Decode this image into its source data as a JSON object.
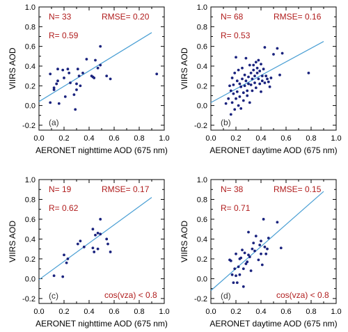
{
  "colors": {
    "points": "#1a237e",
    "fit_line": "#4a9fd4",
    "stats_text": "#b01c1c",
    "frame": "#000000"
  },
  "chart_data": [
    {
      "type": "scatter",
      "panel_label": "(a)",
      "xlabel": "AERONET nighttime AOD (675 nm)",
      "ylabel": "VIIRS AOD",
      "xlim": [
        0,
        1.0
      ],
      "ylim": [
        -0.25,
        1.0
      ],
      "xticks": [
        "0.0",
        "0.2",
        "0.4",
        "0.6",
        "0.8",
        "1.0"
      ],
      "yticks": [
        "-0.2",
        "0.0",
        "0.2",
        "0.4",
        "0.6",
        "0.8",
        "1.0"
      ],
      "stats": {
        "n": "N= 33",
        "rmse": "RMSE= 0.20",
        "r": "R= 0.59",
        "condition": ""
      },
      "fit_line": [
        [
          0,
          0.04
        ],
        [
          0.9,
          0.74
        ]
      ],
      "points": [
        [
          0.09,
          0.32
        ],
        [
          0.09,
          0.03
        ],
        [
          0.12,
          0.18
        ],
        [
          0.12,
          0.16
        ],
        [
          0.14,
          0.22
        ],
        [
          0.15,
          0.37
        ],
        [
          0.15,
          0.25
        ],
        [
          0.16,
          0.02
        ],
        [
          0.19,
          0.36
        ],
        [
          0.2,
          0.28
        ],
        [
          0.21,
          0.09
        ],
        [
          0.23,
          0.37
        ],
        [
          0.24,
          0.33
        ],
        [
          0.25,
          0.23
        ],
        [
          0.28,
          0.11
        ],
        [
          0.29,
          -0.04
        ],
        [
          0.3,
          0.22
        ],
        [
          0.3,
          0.16
        ],
        [
          0.31,
          0.37
        ],
        [
          0.32,
          0.3
        ],
        [
          0.33,
          0.2
        ],
        [
          0.35,
          0.33
        ],
        [
          0.38,
          0.47
        ],
        [
          0.42,
          0.3
        ],
        [
          0.43,
          0.29
        ],
        [
          0.44,
          0.28
        ],
        [
          0.45,
          0.46
        ],
        [
          0.47,
          0.38
        ],
        [
          0.49,
          0.6
        ],
        [
          0.49,
          0.41
        ],
        [
          0.54,
          0.3
        ],
        [
          0.57,
          0.27
        ],
        [
          0.94,
          0.32
        ]
      ]
    },
    {
      "type": "scatter",
      "panel_label": "(b)",
      "xlabel": "AERONET daytime AOD (675 nm)",
      "ylabel": "VIIRS AOD",
      "xlim": [
        0,
        1.0
      ],
      "ylim": [
        -0.25,
        1.0
      ],
      "xticks": [
        "0.0",
        "0.2",
        "0.4",
        "0.6",
        "0.8",
        "1.0"
      ],
      "yticks": [
        "-0.2",
        "0.0",
        "0.2",
        "0.4",
        "0.6",
        "0.8",
        "1.0"
      ],
      "stats": {
        "n": "N= 68",
        "rmse": "RMSE= 0.16",
        "r": "R= 0.53",
        "condition": ""
      },
      "fit_line": [
        [
          0,
          0.03
        ],
        [
          0.9,
          0.65
        ]
      ],
      "points": [
        [
          0.12,
          0.02
        ],
        [
          0.14,
          0.07
        ],
        [
          0.15,
          0.2
        ],
        [
          0.16,
          0.15
        ],
        [
          0.16,
          -0.09
        ],
        [
          0.17,
          0.03
        ],
        [
          0.17,
          0.28
        ],
        [
          0.18,
          0.21
        ],
        [
          0.18,
          0.12
        ],
        [
          0.19,
          -0.04
        ],
        [
          0.19,
          0.33
        ],
        [
          0.2,
          0.07
        ],
        [
          0.2,
          0.49
        ],
        [
          0.21,
          0.25
        ],
        [
          0.21,
          0.14
        ],
        [
          0.22,
          0.0
        ],
        [
          0.22,
          0.36
        ],
        [
          0.23,
          0.22
        ],
        [
          0.23,
          0.09
        ],
        [
          0.24,
          0.19
        ],
        [
          0.24,
          -0.03
        ],
        [
          0.25,
          0.27
        ],
        [
          0.25,
          0.38
        ],
        [
          0.26,
          0.13
        ],
        [
          0.26,
          0.05
        ],
        [
          0.27,
          0.2
        ],
        [
          0.27,
          0.31
        ],
        [
          0.28,
          0.48
        ],
        [
          0.28,
          0.25
        ],
        [
          0.29,
          0.15
        ],
        [
          0.29,
          0.1
        ],
        [
          0.3,
          0.29
        ],
        [
          0.3,
          0.22
        ],
        [
          0.31,
          0.41
        ],
        [
          0.31,
          0.03
        ],
        [
          0.32,
          0.21
        ],
        [
          0.32,
          0.33
        ],
        [
          0.33,
          0.27
        ],
        [
          0.33,
          0.15
        ],
        [
          0.34,
          0.41
        ],
        [
          0.34,
          0.36
        ],
        [
          0.35,
          0.23
        ],
        [
          0.35,
          0.3
        ],
        [
          0.36,
          0.44
        ],
        [
          0.36,
          0.18
        ],
        [
          0.37,
          0.38
        ],
        [
          0.37,
          0.33
        ],
        [
          0.38,
          0.46
        ],
        [
          0.38,
          0.27
        ],
        [
          0.39,
          0.35
        ],
        [
          0.39,
          0.22
        ],
        [
          0.4,
          0.42
        ],
        [
          0.4,
          0.14
        ],
        [
          0.41,
          0.3
        ],
        [
          0.41,
          0.25
        ],
        [
          0.42,
          0.37
        ],
        [
          0.43,
          0.23
        ],
        [
          0.43,
          0.59
        ],
        [
          0.44,
          0.3
        ],
        [
          0.45,
          0.27
        ],
        [
          0.46,
          0.24
        ],
        [
          0.47,
          0.19
        ],
        [
          0.48,
          0.28
        ],
        [
          0.5,
          0.52
        ],
        [
          0.53,
          0.58
        ],
        [
          0.55,
          0.31
        ],
        [
          0.57,
          0.53
        ],
        [
          0.78,
          0.33
        ]
      ]
    },
    {
      "type": "scatter",
      "panel_label": "(c)",
      "xlabel": "AERONET nighttime AOD (675 nm)",
      "ylabel": "VIIRS AOD",
      "xlim": [
        0,
        1.0
      ],
      "ylim": [
        -0.25,
        1.0
      ],
      "xticks": [
        "0.0",
        "0.2",
        "0.4",
        "0.6",
        "0.8",
        "1.0"
      ],
      "yticks": [
        "-0.2",
        "0.0",
        "0.2",
        "0.4",
        "0.6",
        "0.8",
        "1.0"
      ],
      "stats": {
        "n": "N= 19",
        "rmse": "RMSE= 0.17",
        "r": "R= 0.62",
        "condition": "cos(vza) < 0.8"
      },
      "fit_line": [
        [
          0,
          -0.01
        ],
        [
          0.9,
          0.82
        ]
      ],
      "points": [
        [
          0.12,
          0.03
        ],
        [
          0.19,
          0.02
        ],
        [
          0.2,
          0.24
        ],
        [
          0.22,
          0.16
        ],
        [
          0.23,
          0.2
        ],
        [
          0.31,
          0.35
        ],
        [
          0.33,
          0.38
        ],
        [
          0.36,
          0.32
        ],
        [
          0.43,
          0.31
        ],
        [
          0.43,
          0.5
        ],
        [
          0.44,
          0.27
        ],
        [
          0.45,
          0.44
        ],
        [
          0.47,
          0.3
        ],
        [
          0.47,
          0.46
        ],
        [
          0.49,
          0.45
        ],
        [
          0.49,
          0.6
        ],
        [
          0.54,
          0.4
        ],
        [
          0.55,
          0.35
        ],
        [
          0.57,
          0.27
        ]
      ]
    },
    {
      "type": "scatter",
      "panel_label": "(d)",
      "xlabel": "AERONET daytime AOD (675 nm)",
      "ylabel": "VIIRS AOD",
      "xlim": [
        0,
        1.0
      ],
      "ylim": [
        -0.25,
        1.0
      ],
      "xticks": [
        "0.0",
        "0.2",
        "0.4",
        "0.6",
        "0.8",
        "1.0"
      ],
      "yticks": [
        "-0.2",
        "0.0",
        "0.2",
        "0.4",
        "0.6",
        "0.8",
        "1.0"
      ],
      "stats": {
        "n": "N= 38",
        "rmse": "RMSE= 0.15",
        "r": "R= 0.71",
        "condition": "cos(vza) < 0.8"
      },
      "fit_line": [
        [
          0,
          -0.12
        ],
        [
          0.9,
          0.88
        ]
      ],
      "points": [
        [
          0.15,
          0.19
        ],
        [
          0.16,
          0.18
        ],
        [
          0.17,
          0.04
        ],
        [
          0.18,
          -0.04
        ],
        [
          0.19,
          0.1
        ],
        [
          0.2,
          0.03
        ],
        [
          0.2,
          0.25
        ],
        [
          0.21,
          -0.04
        ],
        [
          0.22,
          0.12
        ],
        [
          0.23,
          0.04
        ],
        [
          0.23,
          0.2
        ],
        [
          0.24,
          0.21
        ],
        [
          0.25,
          0.29
        ],
        [
          0.26,
          0.1
        ],
        [
          0.26,
          -0.08
        ],
        [
          0.27,
          0.26
        ],
        [
          0.28,
          0.15
        ],
        [
          0.29,
          0.17
        ],
        [
          0.3,
          0.47
        ],
        [
          0.3,
          0.24
        ],
        [
          0.31,
          0.22
        ],
        [
          0.32,
          0.08
        ],
        [
          0.33,
          0.3
        ],
        [
          0.34,
          0.36
        ],
        [
          0.35,
          0.28
        ],
        [
          0.36,
          0.43
        ],
        [
          0.38,
          0.19
        ],
        [
          0.39,
          0.34
        ],
        [
          0.4,
          0.38
        ],
        [
          0.4,
          0.25
        ],
        [
          0.41,
          0.14
        ],
        [
          0.42,
          0.6
        ],
        [
          0.43,
          0.32
        ],
        [
          0.44,
          0.25
        ],
        [
          0.45,
          0.3
        ],
        [
          0.46,
          0.41
        ],
        [
          0.53,
          0.57
        ],
        [
          0.56,
          0.31
        ]
      ]
    }
  ]
}
